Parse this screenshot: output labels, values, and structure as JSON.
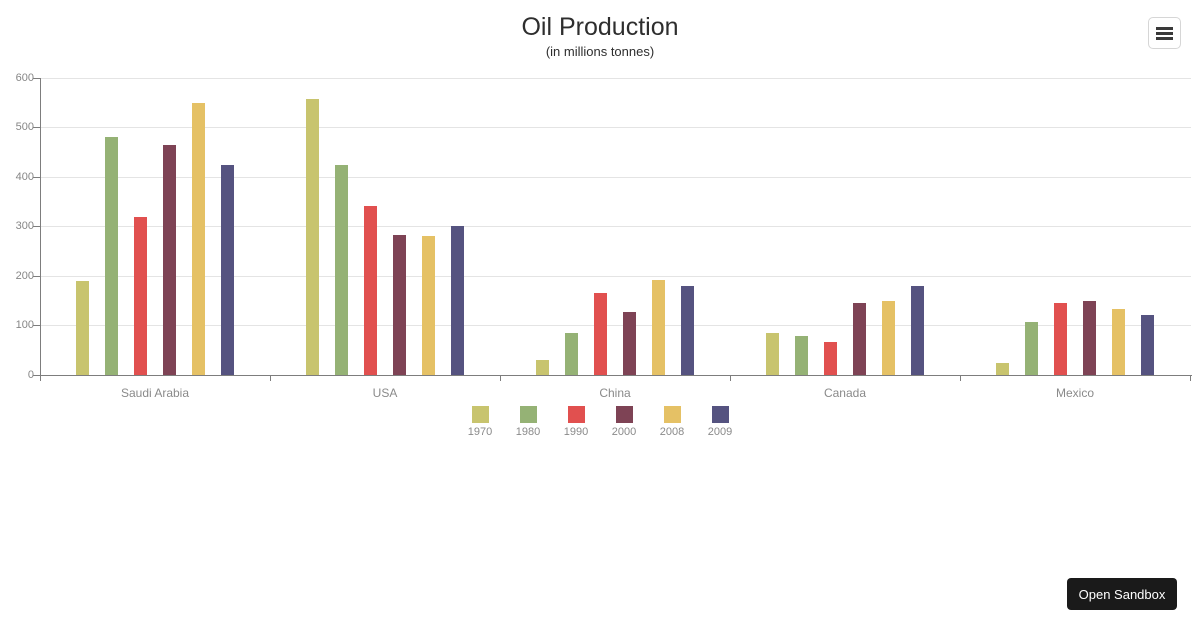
{
  "chart_data": {
    "type": "bar",
    "title": "Oil Production",
    "subtitle": "(in millions tonnes)",
    "categories": [
      "Saudi Arabia",
      "USA",
      "China",
      "Canada",
      "Mexico"
    ],
    "series": [
      {
        "name": "1970",
        "color": "#c8c46e",
        "values": [
          190,
          558,
          30,
          85,
          24
        ]
      },
      {
        "name": "1980",
        "color": "#95b275",
        "values": [
          480,
          425,
          85,
          78,
          108
        ]
      },
      {
        "name": "1990",
        "color": "#e1504f",
        "values": [
          320,
          342,
          165,
          66,
          145
        ]
      },
      {
        "name": "2000",
        "color": "#7e4355",
        "values": [
          465,
          283,
          127,
          145,
          150
        ]
      },
      {
        "name": "2008",
        "color": "#e5c165",
        "values": [
          550,
          280,
          191,
          150,
          133
        ]
      },
      {
        "name": "2009",
        "color": "#555380",
        "values": [
          425,
          300,
          180,
          180,
          121
        ]
      }
    ],
    "ylim": [
      0,
      600
    ],
    "ytick_interval": 100,
    "yticks": [
      "0",
      "100",
      "200",
      "300",
      "400",
      "500",
      "600"
    ],
    "grid": true,
    "legend_position": "bottom"
  },
  "toolbar": {
    "menu_icon": "hamburger-icon"
  },
  "sandbox": {
    "button_label": "Open Sandbox"
  }
}
